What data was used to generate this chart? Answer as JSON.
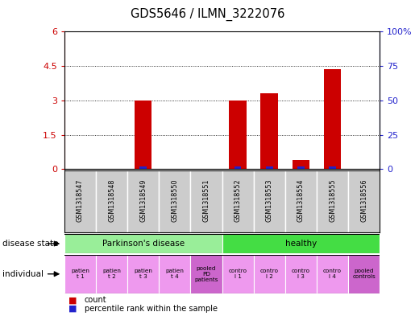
{
  "title": "GDS5646 / ILMN_3222076",
  "samples": [
    "GSM1318547",
    "GSM1318548",
    "GSM1318549",
    "GSM1318550",
    "GSM1318551",
    "GSM1318552",
    "GSM1318553",
    "GSM1318554",
    "GSM1318555",
    "GSM1318556"
  ],
  "count_values": [
    0,
    0,
    3.0,
    0,
    0,
    3.0,
    3.3,
    0.4,
    4.35,
    0
  ],
  "percentile_has_marker": [
    false,
    false,
    true,
    false,
    false,
    true,
    true,
    true,
    true,
    false
  ],
  "ylim_left": [
    0,
    6
  ],
  "ylim_right": [
    0,
    100
  ],
  "yticks_left": [
    0,
    1.5,
    3.0,
    4.5,
    6.0
  ],
  "yticks_right": [
    0,
    25,
    50,
    75,
    100
  ],
  "ytick_labels_left": [
    "0",
    "1.5",
    "3",
    "4.5",
    "6"
  ],
  "ytick_labels_right": [
    "0",
    "25",
    "50",
    "75",
    "100%"
  ],
  "bar_color_red": "#cc0000",
  "bar_color_blue": "#2222cc",
  "bg_color": "#ffffff",
  "sample_bg_color": "#cccccc",
  "pd_color": "#99ee99",
  "healthy_color": "#44dd44",
  "normal_ind_color": "#ee99ee",
  "pooled_ind_color": "#cc66cc",
  "disease_state_label": "disease state",
  "individual_label": "individual",
  "legend_count": "count",
  "legend_percentile": "percentile rank within the sample",
  "individual_labels": [
    {
      "text": "patien\nt 1",
      "pooled": false
    },
    {
      "text": "patien\nt 2",
      "pooled": false
    },
    {
      "text": "patien\nt 3",
      "pooled": false
    },
    {
      "text": "patien\nt 4",
      "pooled": false
    },
    {
      "text": "pooled\nPD\npatients",
      "pooled": true
    },
    {
      "text": "contro\nl 1",
      "pooled": false
    },
    {
      "text": "contro\nl 2",
      "pooled": false
    },
    {
      "text": "contro\nl 3",
      "pooled": false
    },
    {
      "text": "contro\nl 4",
      "pooled": false
    },
    {
      "text": "pooled\ncontrols",
      "pooled": true
    }
  ]
}
